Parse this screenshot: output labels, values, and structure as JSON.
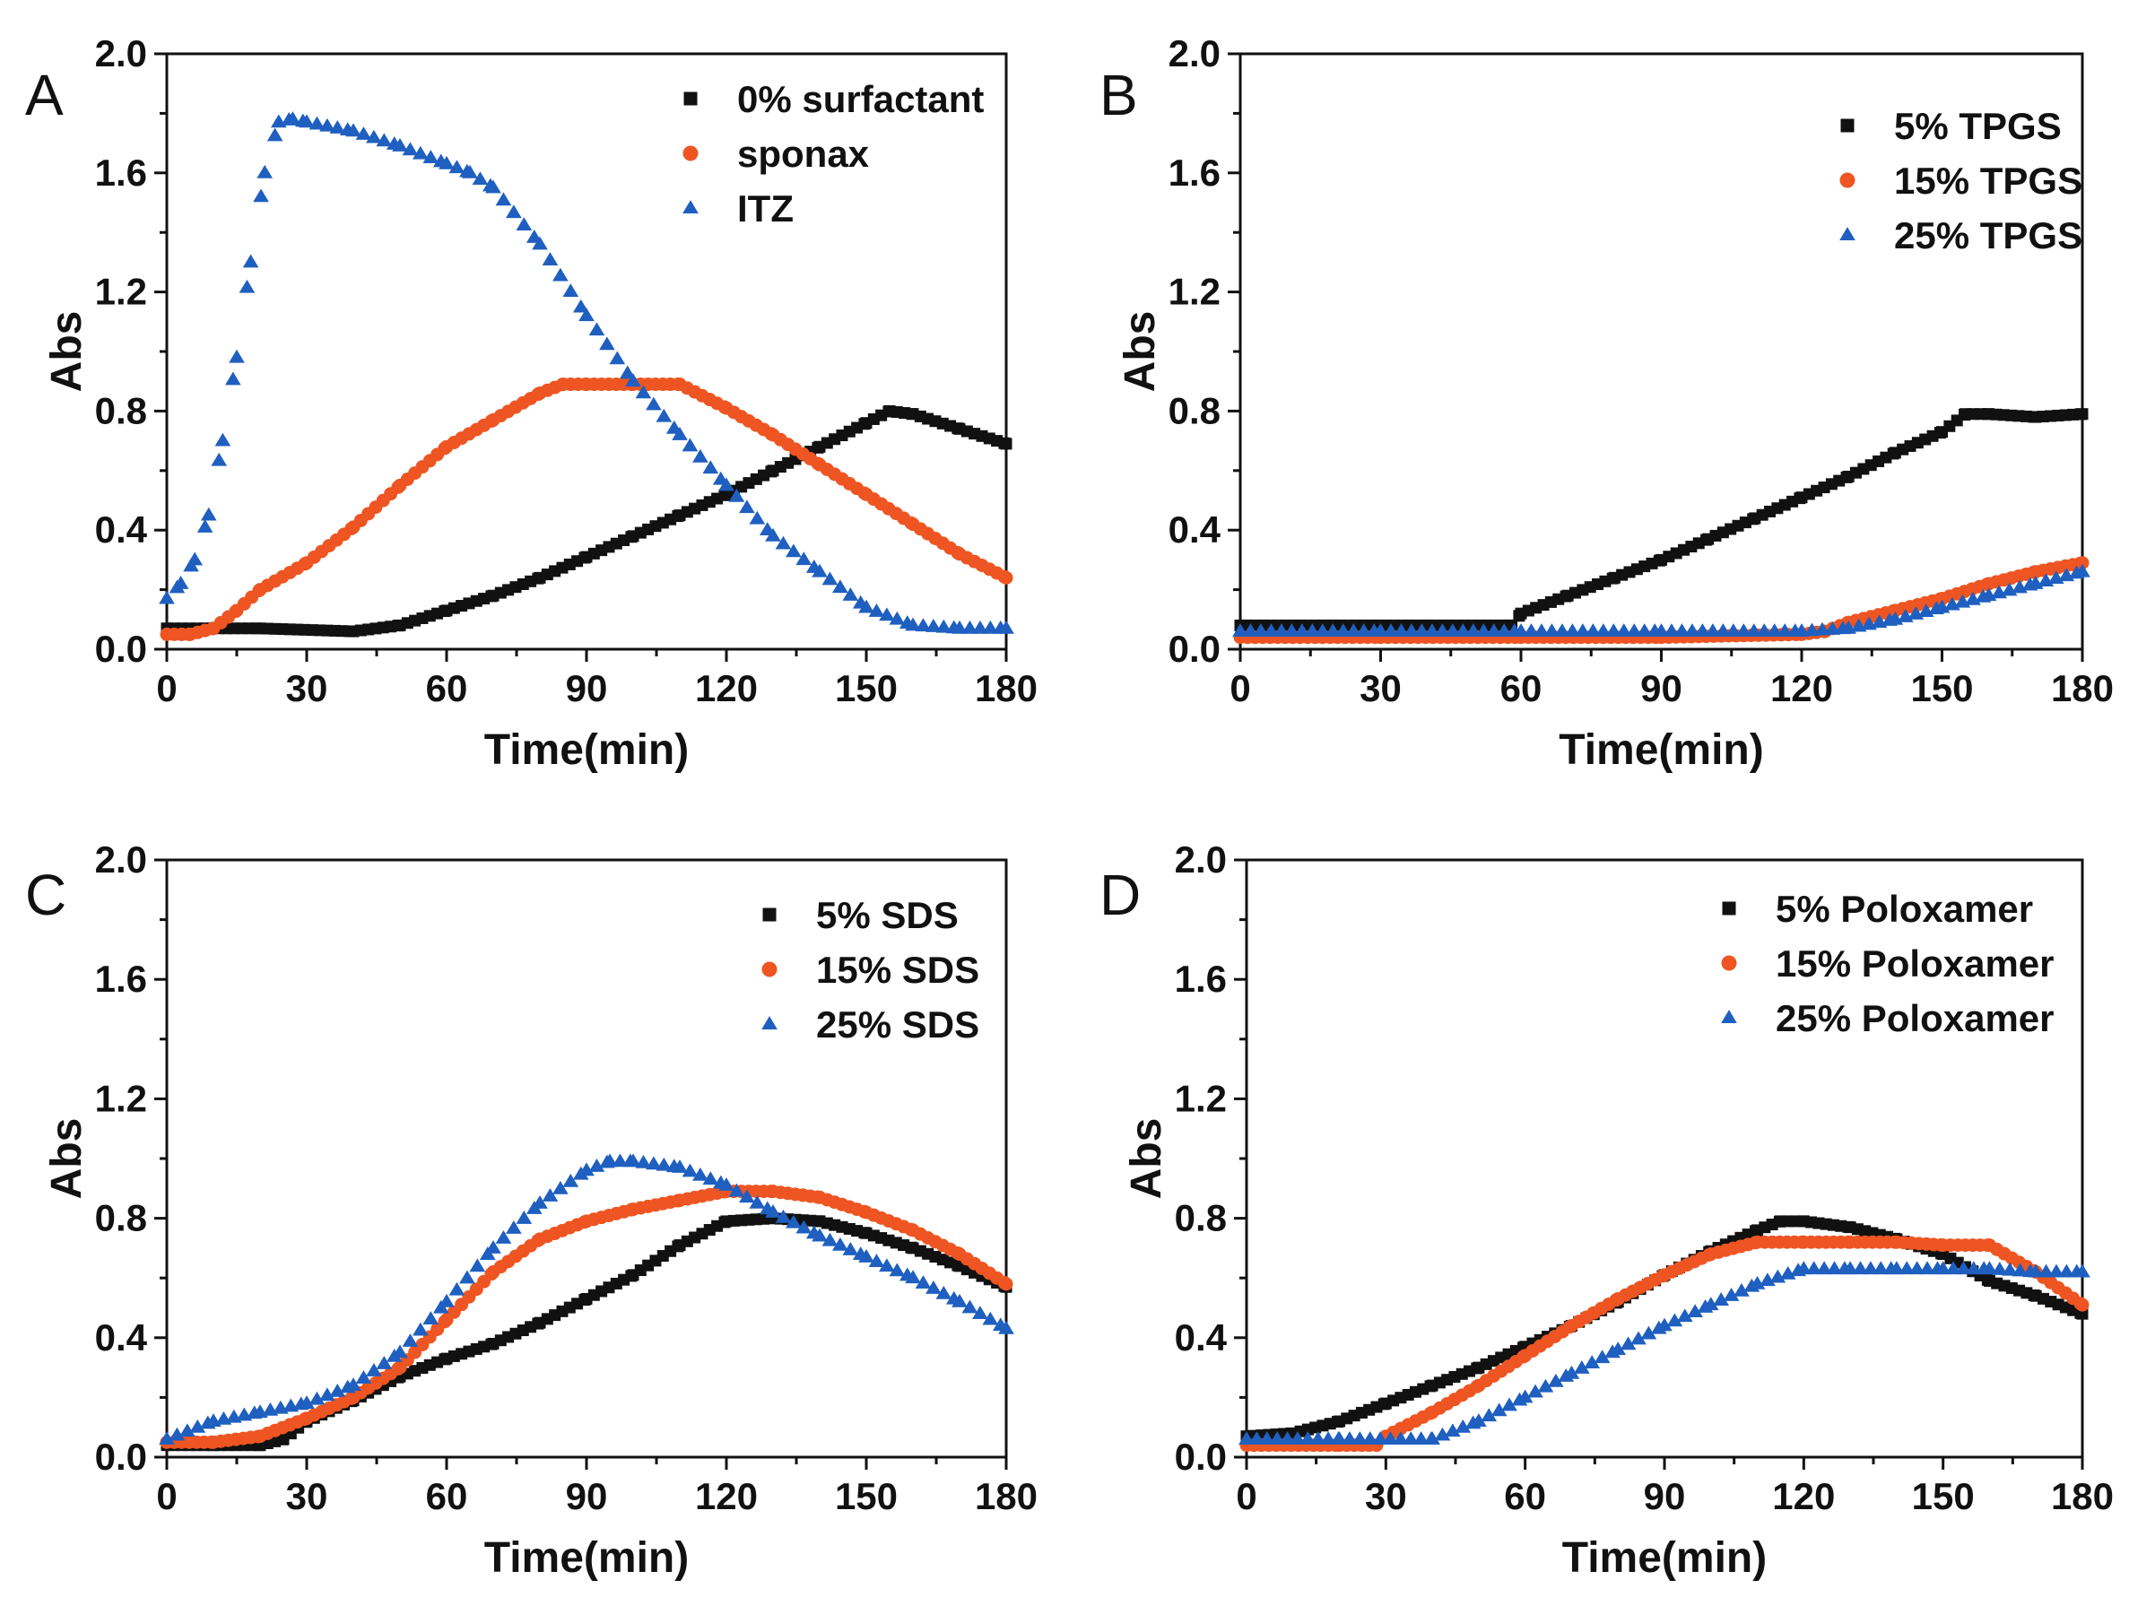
{
  "figure": {
    "colors": {
      "black": "#111111",
      "orange": "#ee5522",
      "blue": "#1f5fc0"
    },
    "panels": [
      "A",
      "B",
      "C",
      "D"
    ]
  },
  "chart_data": [
    {
      "panel": "A",
      "type": "scatter",
      "xlabel": "Time(min)",
      "ylabel": "Abs",
      "xlim": [
        0,
        180
      ],
      "ylim": [
        0,
        2.0
      ],
      "xticks": [
        "0",
        "30",
        "60",
        "90",
        "120",
        "150",
        "180"
      ],
      "yticks": [
        "0.0",
        "0.4",
        "0.8",
        "1.2",
        "1.6",
        "2.0"
      ],
      "legend_position": "top-right",
      "series": [
        {
          "name": "0% surfactant",
          "marker": "square",
          "color": "#111111",
          "x": [
            0,
            20,
            40,
            50,
            60,
            70,
            80,
            90,
            100,
            110,
            120,
            130,
            140,
            150,
            155,
            160,
            170,
            180
          ],
          "y": [
            0.07,
            0.07,
            0.06,
            0.08,
            0.13,
            0.18,
            0.24,
            0.31,
            0.38,
            0.45,
            0.52,
            0.6,
            0.68,
            0.76,
            0.8,
            0.79,
            0.74,
            0.69
          ]
        },
        {
          "name": "sponax",
          "marker": "circle",
          "color": "#ee5522",
          "x": [
            0,
            5,
            10,
            15,
            20,
            30,
            40,
            50,
            60,
            70,
            80,
            85,
            90,
            100,
            110,
            120,
            130,
            140,
            150,
            160,
            170,
            180
          ],
          "y": [
            0.05,
            0.05,
            0.07,
            0.13,
            0.2,
            0.29,
            0.41,
            0.55,
            0.68,
            0.77,
            0.86,
            0.89,
            0.89,
            0.89,
            0.89,
            0.81,
            0.72,
            0.62,
            0.52,
            0.42,
            0.32,
            0.24
          ]
        },
        {
          "name": "ITZ",
          "marker": "triangle",
          "color": "#1f5fc0",
          "x": [
            0,
            3,
            6,
            9,
            12,
            15,
            18,
            21,
            24,
            27,
            30,
            40,
            50,
            60,
            65,
            70,
            80,
            90,
            100,
            110,
            120,
            130,
            140,
            150,
            160,
            170,
            180
          ],
          "y": [
            0.17,
            0.22,
            0.3,
            0.45,
            0.7,
            0.98,
            1.3,
            1.6,
            1.77,
            1.78,
            1.77,
            1.74,
            1.69,
            1.63,
            1.6,
            1.55,
            1.36,
            1.12,
            0.9,
            0.72,
            0.55,
            0.38,
            0.26,
            0.14,
            0.08,
            0.07,
            0.07
          ]
        }
      ]
    },
    {
      "panel": "B",
      "type": "scatter",
      "xlabel": "Time(min)",
      "ylabel": "Abs",
      "xlim": [
        0,
        180
      ],
      "ylim": [
        0,
        2.0
      ],
      "xticks": [
        "0",
        "30",
        "60",
        "90",
        "120",
        "150",
        "180"
      ],
      "yticks": [
        "0.0",
        "0.4",
        "0.8",
        "1.2",
        "1.6",
        "2.0"
      ],
      "legend_position": "top-right",
      "series": [
        {
          "name": "5% TPGS",
          "marker": "square",
          "color": "#111111",
          "x": [
            0,
            20,
            40,
            58,
            60,
            70,
            80,
            90,
            100,
            110,
            120,
            130,
            140,
            150,
            155,
            160,
            170,
            180
          ],
          "y": [
            0.08,
            0.08,
            0.08,
            0.08,
            0.12,
            0.18,
            0.24,
            0.3,
            0.37,
            0.44,
            0.51,
            0.58,
            0.66,
            0.73,
            0.79,
            0.79,
            0.78,
            0.79
          ]
        },
        {
          "name": "15% TPGS",
          "marker": "circle",
          "color": "#ee5522",
          "x": [
            0,
            30,
            60,
            90,
            120,
            125,
            130,
            140,
            150,
            160,
            170,
            180
          ],
          "y": [
            0.04,
            0.04,
            0.04,
            0.04,
            0.05,
            0.06,
            0.09,
            0.13,
            0.17,
            0.22,
            0.26,
            0.29
          ]
        },
        {
          "name": "25% TPGS",
          "marker": "triangle",
          "color": "#1f5fc0",
          "x": [
            0,
            30,
            60,
            90,
            120,
            130,
            140,
            150,
            160,
            170,
            180
          ],
          "y": [
            0.06,
            0.06,
            0.06,
            0.06,
            0.06,
            0.07,
            0.1,
            0.14,
            0.18,
            0.22,
            0.26
          ]
        }
      ]
    },
    {
      "panel": "C",
      "type": "scatter",
      "xlabel": "Time(min)",
      "ylabel": "Abs",
      "xlim": [
        0,
        180
      ],
      "ylim": [
        0,
        2.0
      ],
      "xticks": [
        "0",
        "30",
        "60",
        "90",
        "120",
        "150",
        "180"
      ],
      "yticks": [
        "0.0",
        "0.4",
        "0.8",
        "1.2",
        "1.6",
        "2.0"
      ],
      "legend_position": "top-right",
      "series": [
        {
          "name": "5% SDS",
          "marker": "square",
          "color": "#111111",
          "x": [
            0,
            10,
            20,
            25,
            30,
            40,
            50,
            60,
            70,
            80,
            90,
            100,
            110,
            120,
            130,
            140,
            150,
            160,
            170,
            180
          ],
          "y": [
            0.04,
            0.04,
            0.04,
            0.06,
            0.12,
            0.19,
            0.27,
            0.33,
            0.38,
            0.45,
            0.53,
            0.61,
            0.71,
            0.79,
            0.8,
            0.79,
            0.75,
            0.7,
            0.64,
            0.57
          ]
        },
        {
          "name": "15% SDS",
          "marker": "circle",
          "color": "#ee5522",
          "x": [
            0,
            10,
            20,
            30,
            40,
            50,
            60,
            70,
            80,
            90,
            100,
            110,
            120,
            130,
            140,
            150,
            160,
            170,
            180
          ],
          "y": [
            0.05,
            0.05,
            0.07,
            0.13,
            0.2,
            0.3,
            0.46,
            0.62,
            0.73,
            0.79,
            0.83,
            0.86,
            0.89,
            0.89,
            0.87,
            0.82,
            0.76,
            0.68,
            0.58
          ]
        },
        {
          "name": "25% SDS",
          "marker": "triangle",
          "color": "#1f5fc0",
          "x": [
            0,
            10,
            20,
            30,
            40,
            50,
            60,
            70,
            80,
            90,
            95,
            100,
            110,
            120,
            130,
            140,
            150,
            160,
            170,
            180
          ],
          "y": [
            0.06,
            0.12,
            0.15,
            0.18,
            0.24,
            0.35,
            0.52,
            0.7,
            0.85,
            0.96,
            0.99,
            0.99,
            0.97,
            0.91,
            0.82,
            0.74,
            0.67,
            0.6,
            0.52,
            0.43
          ]
        }
      ]
    },
    {
      "panel": "D",
      "type": "scatter",
      "xlabel": "Time(min)",
      "ylabel": "Abs",
      "xlim": [
        0,
        180
      ],
      "ylim": [
        0,
        2.0
      ],
      "xticks": [
        "0",
        "30",
        "60",
        "90",
        "120",
        "150",
        "180"
      ],
      "yticks": [
        "0.0",
        "0.4",
        "0.8",
        "1.2",
        "1.6",
        "2.0"
      ],
      "legend_position": "top-right",
      "series": [
        {
          "name": "5% Poloxamer",
          "marker": "square",
          "color": "#111111",
          "x": [
            0,
            10,
            20,
            30,
            40,
            50,
            60,
            70,
            80,
            90,
            100,
            110,
            115,
            120,
            130,
            140,
            150,
            160,
            170,
            180
          ],
          "y": [
            0.07,
            0.08,
            0.12,
            0.18,
            0.24,
            0.3,
            0.37,
            0.44,
            0.52,
            0.61,
            0.69,
            0.76,
            0.79,
            0.79,
            0.77,
            0.73,
            0.68,
            0.59,
            0.54,
            0.48
          ]
        },
        {
          "name": "15% Poloxamer",
          "marker": "circle",
          "color": "#ee5522",
          "x": [
            0,
            20,
            28,
            30,
            40,
            50,
            60,
            70,
            80,
            90,
            100,
            110,
            120,
            130,
            140,
            150,
            160,
            170,
            180
          ],
          "y": [
            0.04,
            0.04,
            0.04,
            0.07,
            0.15,
            0.24,
            0.34,
            0.44,
            0.53,
            0.61,
            0.68,
            0.72,
            0.72,
            0.72,
            0.72,
            0.71,
            0.71,
            0.62,
            0.51
          ]
        },
        {
          "name": "25% Poloxamer",
          "marker": "triangle",
          "color": "#1f5fc0",
          "x": [
            0,
            20,
            40,
            50,
            60,
            70,
            80,
            90,
            100,
            110,
            120,
            130,
            140,
            150,
            160,
            170,
            180
          ],
          "y": [
            0.06,
            0.06,
            0.06,
            0.12,
            0.2,
            0.28,
            0.36,
            0.44,
            0.51,
            0.58,
            0.63,
            0.63,
            0.63,
            0.63,
            0.63,
            0.62,
            0.62
          ]
        }
      ]
    }
  ]
}
